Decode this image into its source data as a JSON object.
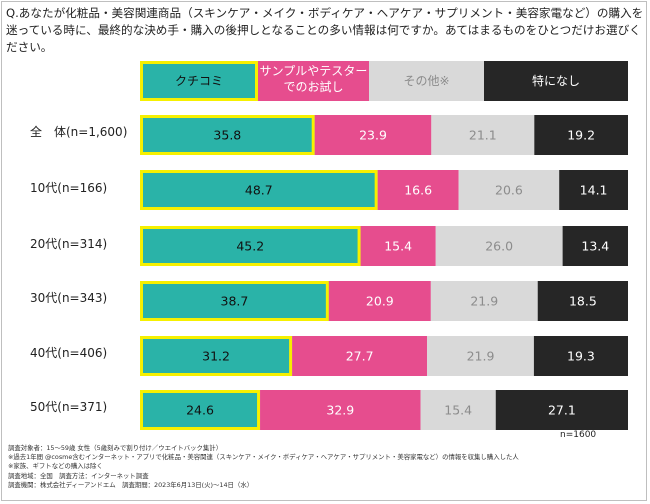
{
  "question": "Q.あなたが化粧品・美容関連商品（スキンケア・メイク・ボディケア・ヘアケア・サプリメント・美容家電など）の購入を迷っている時に、最終的な決め手・購入の後押しとなることの多い情報は何ですか。あてはまるものをひとつだけお選びください。",
  "legend": [
    "クチコミ",
    "サンプルやテスター\nでのお試し",
    "その他※",
    "特になし"
  ],
  "n_total": "n=1600",
  "notes": [
    "調査対象者：15～59歳 女性（5歳刻みで割り付け／ウエイトバック集計）",
    "※過去1年間 @cosme含むインターネット・アプリで化粧品・美容関連（スキンケア・メイク・ボディケア・ヘアケア・サプリメント・美容家電など）の情報を収集し購入した人",
    "※家族、ギフトなどの購入は除く",
    "調査地域：全国　調査方法：インターネット調査",
    "調査機関：株式会社ディーアンドエム　調査期間：2023年6月13日(火)～14日（水）"
  ],
  "colors": {
    "kuchikomi": "#2ab3a8",
    "sample": "#e64d8e",
    "other": "#d9d9d9",
    "none": "#262626",
    "highlight": "#f6f000"
  },
  "chart_data": {
    "type": "bar",
    "orientation": "horizontal",
    "stacked": "100%",
    "categories": [
      "全　体(n=1,600)",
      "10代(n=166)",
      "20代(n=314)",
      "30代(n=343)",
      "40代(n=406)",
      "50代(n=371)"
    ],
    "series": [
      {
        "name": "クチコミ",
        "values": [
          35.8,
          48.7,
          45.2,
          38.7,
          31.2,
          24.6
        ]
      },
      {
        "name": "サンプルやテスターでのお試し",
        "values": [
          23.9,
          16.6,
          15.4,
          20.9,
          27.7,
          32.9
        ]
      },
      {
        "name": "その他※",
        "values": [
          21.1,
          20.6,
          26.0,
          21.9,
          21.9,
          15.4
        ]
      },
      {
        "name": "特になし",
        "values": [
          19.2,
          14.1,
          13.4,
          18.5,
          19.3,
          27.1
        ]
      }
    ],
    "labels": [
      [
        "35.8",
        "23.9",
        "21.1",
        "19.2"
      ],
      [
        "48.7",
        "16.6",
        "20.6",
        "14.1"
      ],
      [
        "45.2",
        "15.4",
        "26.0",
        "13.4"
      ],
      [
        "38.7",
        "20.9",
        "21.9",
        "18.5"
      ],
      [
        "31.2",
        "27.7",
        "21.9",
        "19.3"
      ],
      [
        "24.6",
        "32.9",
        "15.4",
        "27.1"
      ]
    ],
    "highlighted_series": "クチコミ",
    "label_colors": [
      "#111111",
      "#ffffff",
      "#8c8c8c",
      "#ffffff"
    ]
  }
}
